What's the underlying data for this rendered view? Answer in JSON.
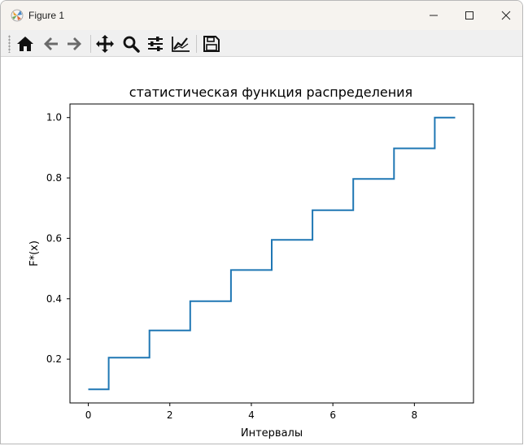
{
  "window": {
    "title": "Figure 1",
    "icons": [
      "matplotlib-icon",
      "minimize-icon",
      "maximize-icon",
      "close-icon"
    ]
  },
  "toolbar": {
    "buttons": [
      "home-icon",
      "back-icon",
      "forward-icon",
      "pan-icon",
      "zoom-icon",
      "configure-subplots-icon",
      "edit-axis-icon",
      "save-icon"
    ]
  },
  "colors": {
    "line": "#1f77b4",
    "titlebar": "#f6f3ef",
    "toolbar": "#f0f0f0"
  },
  "chart_data": {
    "type": "line",
    "drawstyle": "steps",
    "title": "статистическая функция распределения",
    "xlabel": "Интервалы",
    "ylabel": "F*(x)",
    "xlim": [
      -0.45,
      9.45
    ],
    "ylim": [
      0.055,
      1.045
    ],
    "xticks": [
      0,
      2,
      4,
      6,
      8
    ],
    "xtick_labels": [
      "0",
      "2",
      "4",
      "6",
      "8"
    ],
    "yticks": [
      0.2,
      0.4,
      0.6,
      0.8,
      1.0
    ],
    "ytick_labels": [
      "0.2",
      "0.4",
      "0.6",
      "0.8",
      "1.0"
    ],
    "grid": false,
    "legend": false,
    "x": [
      0,
      0.5,
      0.5,
      1.5,
      1.5,
      2.5,
      2.5,
      3.5,
      3.5,
      4.5,
      4.5,
      5.5,
      5.5,
      6.5,
      6.5,
      7.5,
      7.5,
      8.5,
      8.5,
      9
    ],
    "y": [
      0.1,
      0.1,
      0.205,
      0.205,
      0.295,
      0.295,
      0.392,
      0.392,
      0.495,
      0.495,
      0.595,
      0.595,
      0.693,
      0.693,
      0.797,
      0.797,
      0.898,
      0.898,
      1.0,
      1.0
    ]
  }
}
